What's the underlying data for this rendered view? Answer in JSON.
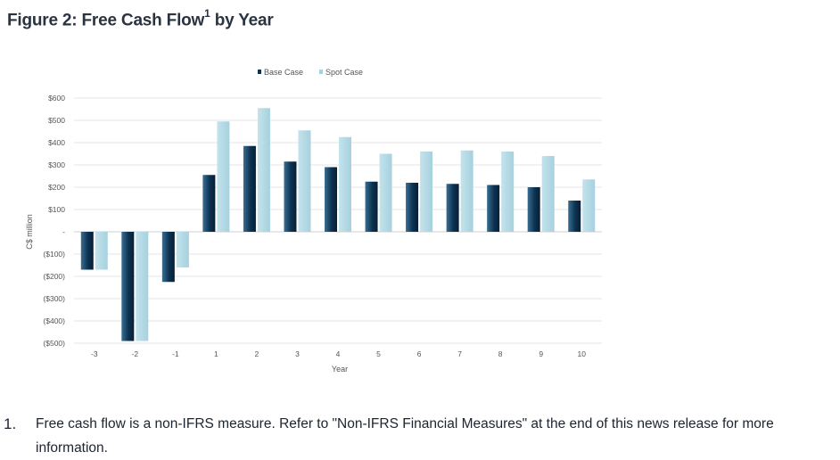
{
  "figure": {
    "title_main": "Figure 2: Free Cash Flow",
    "title_sup": "1",
    "title_tail": " by Year"
  },
  "footnote": {
    "number": "1.",
    "text": "Free cash flow is a non-IFRS measure. Refer to \"Non-IFRS Financial Measures\" at the end of this news release for more information."
  },
  "colors": {
    "base_case": "#0d3352",
    "base_case_light": "#3a6e92",
    "spot_case": "#a6d1de",
    "gridline": "#e6e6e6",
    "tick_text": "#555555"
  },
  "chart_data": {
    "type": "bar",
    "xlabel": "Year",
    "ylabel": "C$ million",
    "categories": [
      "-3",
      "-2",
      "-1",
      "1",
      "2",
      "3",
      "4",
      "5",
      "6",
      "7",
      "8",
      "9",
      "10"
    ],
    "series": [
      {
        "name": "Base Case",
        "values": [
          -170,
          -490,
          -225,
          255,
          385,
          315,
          290,
          225,
          220,
          215,
          210,
          200,
          140
        ]
      },
      {
        "name": "Spot Case",
        "values": [
          -170,
          -490,
          -160,
          495,
          555,
          455,
          425,
          350,
          360,
          365,
          360,
          340,
          235
        ]
      }
    ],
    "ylim": [
      -500,
      600
    ],
    "yticks": [
      600,
      500,
      400,
      300,
      200,
      100,
      0,
      -100,
      -200,
      -300,
      -400,
      -500
    ],
    "ytick_labels": [
      "$600",
      "$500",
      "$400",
      "$300",
      "$200",
      "$100",
      "-",
      "($100)",
      "($200)",
      "($300)",
      "($400)",
      "($500)"
    ],
    "legend_position": "top-center",
    "grid": true
  }
}
